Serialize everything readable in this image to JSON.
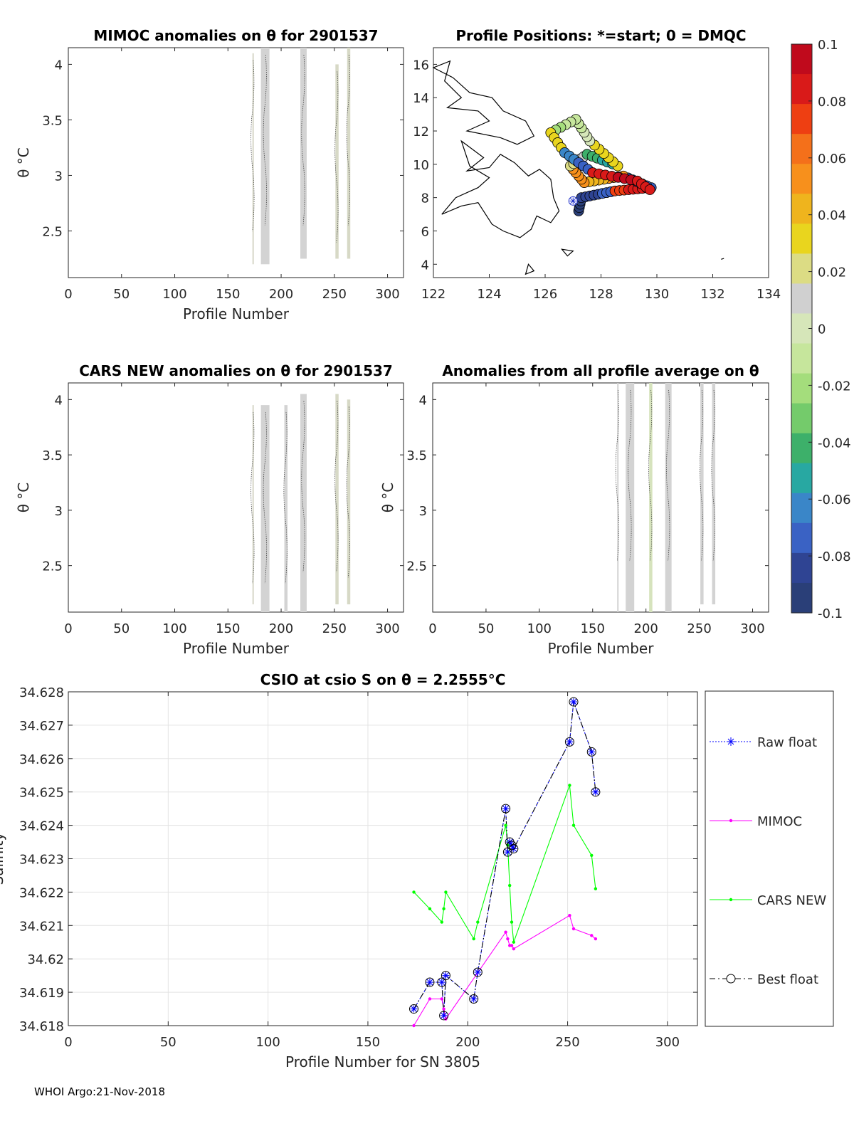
{
  "footer": "WHOI Argo:21-Nov-2018",
  "chart_data": [
    {
      "id": "mimoc",
      "type": "heatmap",
      "title": "MIMOC anomalies on θ  for 2901537",
      "xlabel": "Profile Number",
      "ylabel": "θ °C",
      "xlim": [
        0,
        315
      ],
      "ylim": [
        2.08,
        4.15
      ],
      "xticks": [
        "0",
        "50",
        "100",
        "150",
        "200",
        "250",
        "300"
      ],
      "yticks": [
        "2.5",
        "3",
        "3.5",
        "4"
      ],
      "bands": [
        {
          "x0": 173,
          "x1": 174,
          "y0": 2.2,
          "y1": 4.1,
          "color": "#d6d8c8"
        },
        {
          "x0": 181,
          "x1": 189,
          "y0": 2.2,
          "y1": 4.15,
          "color": "#d3d3d3"
        },
        {
          "x0": 218,
          "x1": 224,
          "y0": 2.25,
          "y1": 4.15,
          "color": "#d3d3d3"
        },
        {
          "x0": 251,
          "x1": 254,
          "y0": 2.25,
          "y1": 4.0,
          "color": "#d7d9c6"
        },
        {
          "x0": 262,
          "x1": 265,
          "y0": 2.25,
          "y1": 4.15,
          "color": "#d7d9c6"
        }
      ]
    },
    {
      "id": "positions",
      "type": "scatter",
      "title": "Profile Positions: *=start; 0 = DMQC",
      "xlim": [
        122,
        134
      ],
      "ylim": [
        3.2,
        17
      ],
      "xticks": [
        "122",
        "124",
        "126",
        "128",
        "130",
        "132",
        "134"
      ],
      "yticks": [
        "4",
        "6",
        "8",
        "10",
        "12",
        "14",
        "16"
      ],
      "start": [
        127,
        7.8
      ]
    },
    {
      "id": "colorbar",
      "type": "colorbar",
      "clim": [
        -0.1,
        0.1
      ],
      "ticks": [
        "0.1",
        "0.08",
        "0.06",
        "0.04",
        "0.02",
        "0",
        "-0.02",
        "-0.04",
        "-0.06",
        "-0.08",
        "-0.1"
      ],
      "colors": [
        "#c00a1c",
        "#d91a19",
        "#ee3f12",
        "#f4701a",
        "#f7901c",
        "#efb41d",
        "#e9d51e",
        "#dcdc84",
        "#d0d0d0",
        "#d6e6b9",
        "#c6e69c",
        "#a4dd7c",
        "#74cb6b",
        "#3db06a",
        "#28a8a2",
        "#3a86c8",
        "#3a62c4",
        "#2f4493",
        "#2a3f78"
      ]
    },
    {
      "id": "cars",
      "type": "heatmap",
      "title": "CARS NEW anomalies on θ for 2901537",
      "xlabel": "Profile Number",
      "ylabel": "θ °C",
      "xlim": [
        0,
        315
      ],
      "ylim": [
        2.08,
        4.15
      ],
      "xticks": [
        "0",
        "50",
        "100",
        "150",
        "200",
        "250",
        "300"
      ],
      "yticks": [
        "2.5",
        "3",
        "3.5",
        "4"
      ],
      "bands": [
        {
          "x0": 173,
          "x1": 174,
          "y0": 2.15,
          "y1": 3.95,
          "color": "#d6d8c8"
        },
        {
          "x0": 181,
          "x1": 189,
          "y0": 2.08,
          "y1": 3.95,
          "color": "#d3d3d3"
        },
        {
          "x0": 203,
          "x1": 206,
          "y0": 2.08,
          "y1": 3.95,
          "color": "#d3d3d3"
        },
        {
          "x0": 218,
          "x1": 224,
          "y0": 2.08,
          "y1": 4.05,
          "color": "#d3d3d3"
        },
        {
          "x0": 251,
          "x1": 254,
          "y0": 2.15,
          "y1": 4.05,
          "color": "#d7d9c6"
        },
        {
          "x0": 262,
          "x1": 265,
          "y0": 2.15,
          "y1": 4.0,
          "color": "#d7d9c6"
        }
      ]
    },
    {
      "id": "avg",
      "type": "heatmap",
      "title": "Anomalies from all profile average on θ",
      "xlabel": "Profile Number",
      "ylabel": "θ °C",
      "xlim": [
        0,
        315
      ],
      "ylim": [
        2.08,
        4.15
      ],
      "xticks": [
        "0",
        "50",
        "100",
        "150",
        "200",
        "250",
        "300"
      ],
      "yticks": [
        "2.5",
        "3",
        "3.5",
        "4"
      ],
      "bands": [
        {
          "x0": 173,
          "x1": 174,
          "y0": 2.08,
          "y1": 4.15,
          "color": "#d3d3d3"
        },
        {
          "x0": 181,
          "x1": 189,
          "y0": 2.08,
          "y1": 4.15,
          "color": "#d3d3d3"
        },
        {
          "x0": 203,
          "x1": 206,
          "y0": 2.08,
          "y1": 4.15,
          "color": "#d6e3bd"
        },
        {
          "x0": 218,
          "x1": 224,
          "y0": 2.08,
          "y1": 4.15,
          "color": "#d3d3d3"
        },
        {
          "x0": 251,
          "x1": 254,
          "y0": 2.15,
          "y1": 4.15,
          "color": "#d3d3d3"
        },
        {
          "x0": 262,
          "x1": 265,
          "y0": 2.15,
          "y1": 4.15,
          "color": "#d3d3d3"
        }
      ]
    },
    {
      "id": "csio",
      "type": "line",
      "title": "CSIO at csio S on θ = 2.2555°C",
      "xlabel": "Profile Number for SN 3805",
      "ylabel": "Salinity",
      "xlim": [
        0,
        315
      ],
      "ylim": [
        34.618,
        34.628
      ],
      "xticks": [
        0,
        50,
        100,
        150,
        200,
        250,
        300
      ],
      "yticks": [
        "34.618",
        "34.619",
        "34.62",
        "34.621",
        "34.622",
        "34.623",
        "34.624",
        "34.625",
        "34.626",
        "34.627",
        "34.628"
      ],
      "grid": true,
      "legend": [
        "Raw float",
        "MIMOC",
        "CARS NEW",
        "Best float"
      ],
      "series": [
        {
          "name": "Raw float",
          "color": "#0000ff",
          "x": [
            173,
            181,
            187,
            188,
            189,
            203,
            205,
            219,
            220,
            221,
            222,
            223,
            251,
            253,
            262,
            264
          ],
          "y": [
            34.6185,
            34.6193,
            34.6193,
            34.6183,
            34.6195,
            34.6188,
            34.6196,
            34.6245,
            34.6232,
            34.6235,
            34.6234,
            34.6233,
            34.6265,
            34.6277,
            34.6262,
            34.625
          ]
        },
        {
          "name": "MIMOC",
          "color": "#ff00ff",
          "x": [
            173,
            181,
            187,
            188,
            189,
            219,
            220,
            221,
            222,
            223,
            251,
            253,
            262,
            264
          ],
          "y": [
            34.618,
            34.6188,
            34.6188,
            34.6185,
            34.6182,
            34.6208,
            34.6206,
            34.6204,
            34.6204,
            34.6203,
            34.6213,
            34.6209,
            34.6207,
            34.6206
          ]
        },
        {
          "name": "CARS NEW",
          "color": "#00ff00",
          "x": [
            173,
            181,
            187,
            188,
            189,
            203,
            205,
            219,
            220,
            221,
            222,
            223,
            251,
            253,
            262,
            264
          ],
          "y": [
            34.622,
            34.6215,
            34.6211,
            34.6215,
            34.622,
            34.6206,
            34.6211,
            34.624,
            34.6234,
            34.6222,
            34.6211,
            34.6205,
            34.6252,
            34.624,
            34.6231,
            34.6221
          ]
        },
        {
          "name": "Best float",
          "color": "#000000",
          "x": [
            173,
            181,
            187,
            188,
            189,
            203,
            205,
            219,
            220,
            221,
            222,
            223,
            251,
            253,
            262,
            264
          ],
          "y": [
            34.6185,
            34.6193,
            34.6193,
            34.6183,
            34.6195,
            34.6188,
            34.6196,
            34.6245,
            34.6232,
            34.6235,
            34.6234,
            34.6233,
            34.6265,
            34.6277,
            34.6262,
            34.625
          ]
        }
      ]
    }
  ]
}
